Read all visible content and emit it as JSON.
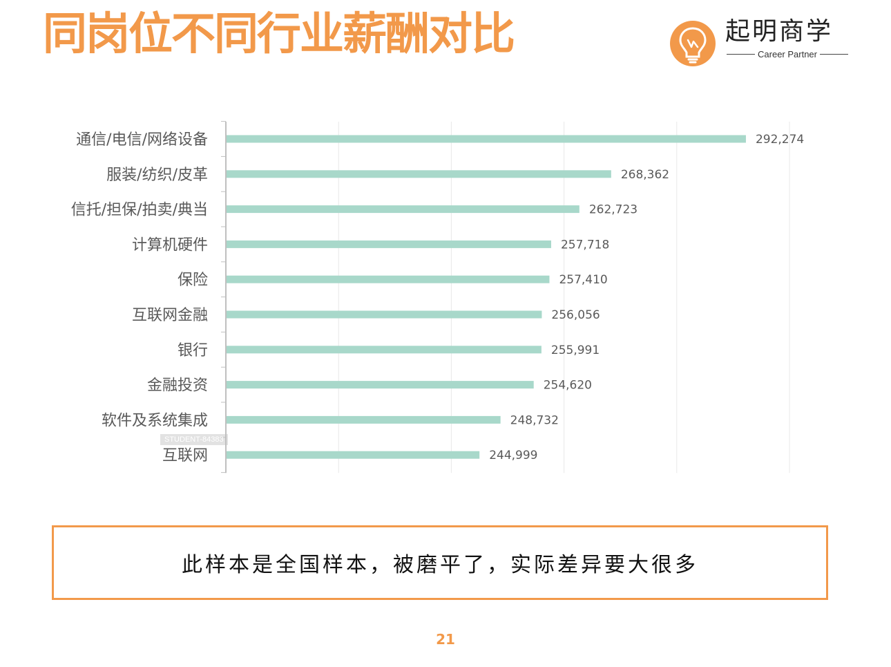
{
  "header": {
    "title": "同岗位不同行业薪酬对比",
    "brand_name": "起明商学",
    "brand_sub": "Career Partner"
  },
  "chart_data": {
    "type": "bar",
    "orientation": "horizontal",
    "categories": [
      "通信/电信/网络设备",
      "服装/纺织/皮革",
      "信托/担保/拍卖/典当",
      "计算机硬件",
      "保险",
      "互联网金融",
      "银行",
      "金融投资",
      "软件及系统集成",
      "互联网"
    ],
    "values": [
      292274,
      268362,
      262723,
      257718,
      257410,
      256056,
      255991,
      254620,
      248732,
      244999
    ],
    "value_labels": [
      "292,274",
      "268,362",
      "262,723",
      "257,718",
      "257,410",
      "256,056",
      "255,991",
      "254,620",
      "248,732",
      "244,999"
    ],
    "xlim": [
      200000,
      300000
    ],
    "grid": true,
    "bar_color": "#a8d8ca"
  },
  "note": "此样本是全国样本，被磨平了，实际差异要大很多",
  "page_number": "21",
  "watermark": "STUDENT-84383"
}
